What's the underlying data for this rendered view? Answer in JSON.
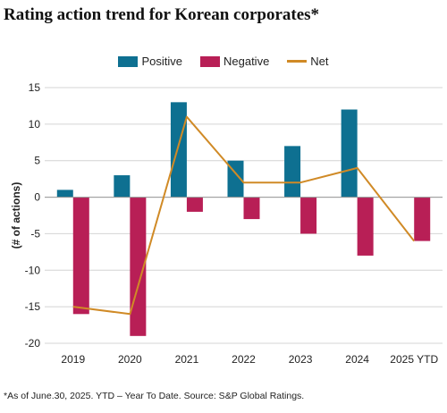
{
  "title": "Rating action trend for Korean corporates*",
  "footnote": "*As of June.30, 2025. YTD – Year To Date. Source: S&P Global Ratings.",
  "legend": {
    "positive": "Positive",
    "negative": "Negative",
    "net": "Net"
  },
  "colors": {
    "positive": "#0e7091",
    "negative": "#b81f56",
    "net": "#d08a26",
    "grid": "#d4d4d4",
    "text": "#222222"
  },
  "chart_data": {
    "type": "bar",
    "title": "Rating action trend for Korean corporates*",
    "xlabel": "",
    "ylabel": "(# of actions)",
    "ylim": [
      -20,
      15
    ],
    "yticks": [
      15,
      10,
      5,
      0,
      -5,
      -10,
      -15,
      -20
    ],
    "grid": true,
    "legend_position": "top",
    "categories": [
      "2019",
      "2020",
      "2021",
      "2022",
      "2023",
      "2024",
      "2025 YTD"
    ],
    "series": [
      {
        "name": "Positive",
        "type": "bar",
        "values": [
          1,
          3,
          13,
          5,
          7,
          12,
          0
        ]
      },
      {
        "name": "Negative",
        "type": "bar",
        "values": [
          -16,
          -19,
          -2,
          -3,
          -5,
          -8,
          -6
        ]
      },
      {
        "name": "Net",
        "type": "line",
        "values": [
          -15,
          -16,
          11,
          2,
          2,
          4,
          -6
        ]
      }
    ]
  }
}
